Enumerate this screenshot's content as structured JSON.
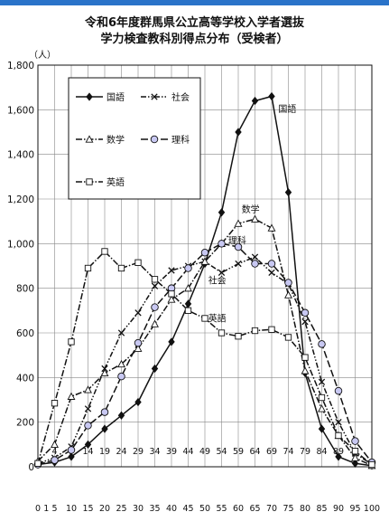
{
  "title_line1": "令和6年度群馬県公立高等学校入学者選抜",
  "title_line2": "学力検査教科別得点分布（受検者）",
  "colors": {
    "topbar": "#2a73c9",
    "line": "#111111",
    "grid": "#888888"
  },
  "chart_data": {
    "type": "line",
    "ylabel": "（人）",
    "ylim": [
      0,
      1800
    ],
    "yticks": [
      0,
      200,
      400,
      600,
      800,
      1000,
      1200,
      1400,
      1600,
      1800
    ],
    "ytick_labels": [
      "0",
      "200",
      "400",
      "600",
      "800",
      "1,000",
      "1,200",
      "1,400",
      "1,600",
      "1,800"
    ],
    "x": [
      0,
      5,
      10,
      15,
      20,
      25,
      30,
      35,
      40,
      45,
      50,
      55,
      60,
      65,
      70,
      75,
      80,
      85,
      90,
      95,
      100
    ],
    "xtick_labels_bottom": [
      "0",
      "1",
      "5",
      "10",
      "15",
      "20",
      "25",
      "30",
      "35",
      "40",
      "45",
      "50",
      "55",
      "60",
      "65",
      "70",
      "75",
      "80",
      "85",
      "90",
      "95",
      "100"
    ],
    "xtick_labels_inner": [
      "4",
      "9",
      "14",
      "19",
      "24",
      "29",
      "34",
      "39",
      "44",
      "49",
      "54",
      "59",
      "64",
      "69",
      "74",
      "79",
      "84",
      "89"
    ],
    "series": [
      {
        "name": "国語",
        "marker": "diamond",
        "dash": "solid",
        "values": [
          10,
          20,
          45,
          100,
          170,
          230,
          290,
          440,
          560,
          730,
          910,
          1140,
          1500,
          1640,
          1660,
          1230,
          420,
          170,
          45,
          15,
          5
        ]
      },
      {
        "name": "社会",
        "marker": "x",
        "dash": "dash-dot-dot",
        "values": [
          15,
          40,
          90,
          260,
          440,
          600,
          690,
          810,
          880,
          900,
          920,
          870,
          910,
          940,
          870,
          820,
          650,
          380,
          200,
          60,
          10
        ]
      },
      {
        "name": "数学",
        "marker": "triangle",
        "dash": "dash-dot",
        "values": [
          25,
          100,
          315,
          345,
          420,
          460,
          530,
          640,
          750,
          800,
          920,
          1000,
          1090,
          1110,
          1070,
          770,
          430,
          260,
          140,
          40,
          5
        ]
      },
      {
        "name": "理科",
        "marker": "circle",
        "dash": "long-dash",
        "values": [
          10,
          30,
          75,
          185,
          245,
          405,
          555,
          715,
          800,
          890,
          960,
          1000,
          985,
          910,
          910,
          825,
          690,
          550,
          340,
          115,
          20
        ]
      },
      {
        "name": "英語",
        "marker": "square",
        "dash": "dash-dot",
        "values": [
          15,
          285,
          560,
          890,
          965,
          890,
          915,
          840,
          775,
          700,
          665,
          600,
          585,
          610,
          615,
          580,
          490,
          310,
          140,
          70,
          10
        ]
      }
    ],
    "annotations": [
      "国語",
      "数学",
      "理科",
      "社会",
      "英語"
    ],
    "legend_position": "top-left",
    "grid": true
  }
}
